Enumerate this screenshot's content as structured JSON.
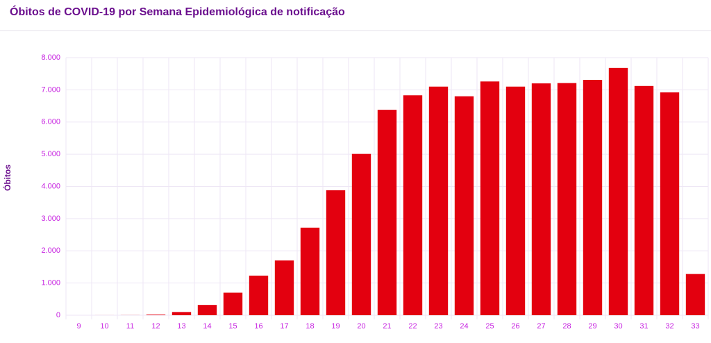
{
  "chart_data": {
    "type": "bar",
    "title": "Óbitos de COVID-19 por Semana Epidemiológica de notificação",
    "y_label": "Óbitos",
    "categories": [
      "9",
      "10",
      "11",
      "12",
      "13",
      "14",
      "15",
      "16",
      "17",
      "18",
      "19",
      "20",
      "21",
      "22",
      "23",
      "24",
      "25",
      "26",
      "27",
      "28",
      "29",
      "30",
      "31",
      "32",
      "33"
    ],
    "values": [
      0,
      1,
      3,
      20,
      100,
      320,
      700,
      1230,
      1700,
      2720,
      3880,
      5010,
      6380,
      6830,
      7100,
      6800,
      7260,
      7100,
      7200,
      7210,
      7310,
      7680,
      7120,
      6920,
      1280
    ],
    "color": "#e3000f",
    "ylim": [
      0,
      8000
    ],
    "yticks": [
      0,
      {
        "value": 1000,
        "label": "1.000"
      },
      {
        "value": 2000,
        "label": "2.000"
      },
      {
        "value": 3000,
        "label": "3.000"
      },
      {
        "value": 4000,
        "label": "4.000"
      },
      {
        "value": 5000,
        "label": "5.000"
      },
      {
        "value": 6000,
        "label": "6.000"
      },
      {
        "value": 7000,
        "label": "7.000"
      },
      {
        "value": 8000,
        "label": "8.000"
      }
    ],
    "grid": true
  }
}
